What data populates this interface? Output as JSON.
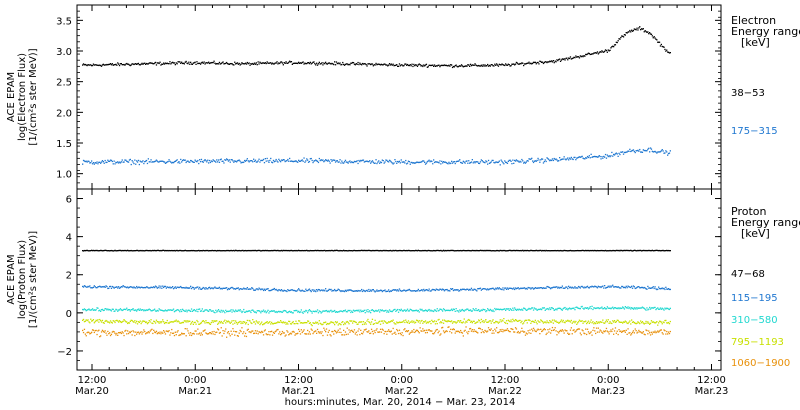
{
  "chart_data": [
    {
      "type": "scatter",
      "panel": "electron",
      "ylabel": [
        "ACE EPAM",
        "log(Electron Flux)",
        "[1/(cm²s ster MeV)]"
      ],
      "ylim": [
        0.75,
        3.75
      ],
      "yticks": [
        1.0,
        1.5,
        2.0,
        2.5,
        3.0,
        3.5
      ],
      "ytick_labels": [
        "1.0",
        "1.5",
        "2.0",
        "2.5",
        "3.0",
        "3.5"
      ],
      "legend_title": [
        "Electron",
        "Energy range",
        "[keV]"
      ],
      "legend_placement": "right",
      "series": [
        {
          "name": "38−53",
          "color": "#000000",
          "x_day": [
            0.0,
            0.25,
            0.5,
            0.75,
            1.0,
            1.25,
            1.5,
            1.75,
            2.0,
            2.25,
            2.5,
            2.55,
            2.6,
            2.65,
            2.7,
            2.75,
            2.8,
            2.85,
            2.9,
            3.0,
            3.25,
            3.5
          ],
          "values": [
            2.78,
            2.8,
            2.82,
            2.8,
            2.82,
            2.8,
            2.78,
            2.77,
            2.78,
            2.85,
            3.02,
            3.2,
            3.33,
            3.38,
            3.3,
            3.12,
            2.95,
            2.88,
            2.82,
            2.82,
            2.78,
            2.78
          ]
        },
        {
          "name": "175−315",
          "color": "#1f77d0",
          "x_day": [
            0.0,
            0.5,
            1.0,
            1.5,
            2.0,
            2.25,
            2.5,
            2.6,
            2.7,
            2.8,
            2.9,
            3.0,
            3.25,
            3.5
          ],
          "values": [
            1.2,
            1.21,
            1.22,
            1.2,
            1.2,
            1.24,
            1.3,
            1.38,
            1.4,
            1.34,
            1.28,
            1.24,
            1.21,
            1.22
          ]
        }
      ]
    },
    {
      "type": "scatter",
      "panel": "proton",
      "ylabel": [
        "ACE EPAM",
        "log(Proton Flux)",
        "[1/(cm²s ster MeV)]"
      ],
      "ylim": [
        -3,
        6.5
      ],
      "yticks": [
        -2,
        0,
        2,
        4,
        6
      ],
      "ytick_labels": [
        "−2",
        "0",
        "2",
        "4",
        "6"
      ],
      "legend_title": [
        "Proton",
        "Energy range",
        "[keV]"
      ],
      "legend_placement": "right",
      "series": [
        {
          "name": "47−68",
          "color": "#000000",
          "x_day": [
            0.0,
            3.5
          ],
          "values": [
            3.3,
            3.3
          ]
        },
        {
          "name": "115−195",
          "color": "#1f77d0",
          "x_day": [
            0.0,
            0.5,
            1.0,
            1.5,
            2.0,
            2.5,
            3.0,
            3.5
          ],
          "values": [
            1.4,
            1.35,
            1.22,
            1.2,
            1.3,
            1.4,
            1.25,
            1.15
          ]
        },
        {
          "name": "310−580",
          "color": "#20d8d0",
          "x_day": [
            0.0,
            1.0,
            2.0,
            2.5,
            3.0,
            3.5
          ],
          "values": [
            0.2,
            0.1,
            0.2,
            0.3,
            0.2,
            0.2
          ]
        },
        {
          "name": "795−1193",
          "color": "#c8e000",
          "x_day": [
            0.0,
            1.0,
            2.0,
            3.0,
            3.5
          ],
          "values": [
            -0.4,
            -0.5,
            -0.4,
            -0.5,
            -0.4
          ]
        },
        {
          "name": "1060−1900",
          "color": "#e8900a",
          "x_day": [
            0.0,
            1.0,
            2.0,
            3.0,
            3.5
          ],
          "values": [
            -1.0,
            -1.0,
            -0.9,
            -1.0,
            -1.0
          ]
        }
      ]
    }
  ],
  "x_axis": {
    "xlabel": "hours:minutes, Mar. 20, 2014 − Mar. 23, 2014",
    "ticks": [
      {
        "day": 0.0,
        "time": "12:00",
        "date": "Mar.20"
      },
      {
        "day": 0.5,
        "time": "0:00",
        "date": "Mar.21"
      },
      {
        "day": 1.0,
        "time": "12:00",
        "date": "Mar.21"
      },
      {
        "day": 1.5,
        "time": "0:00",
        "date": "Mar.22"
      },
      {
        "day": 2.0,
        "time": "12:00",
        "date": "Mar.22"
      },
      {
        "day": 2.5,
        "time": "0:00",
        "date": "Mar.23"
      },
      {
        "day": 3.0,
        "time": "12:00",
        "date": "Mar.23"
      }
    ]
  }
}
